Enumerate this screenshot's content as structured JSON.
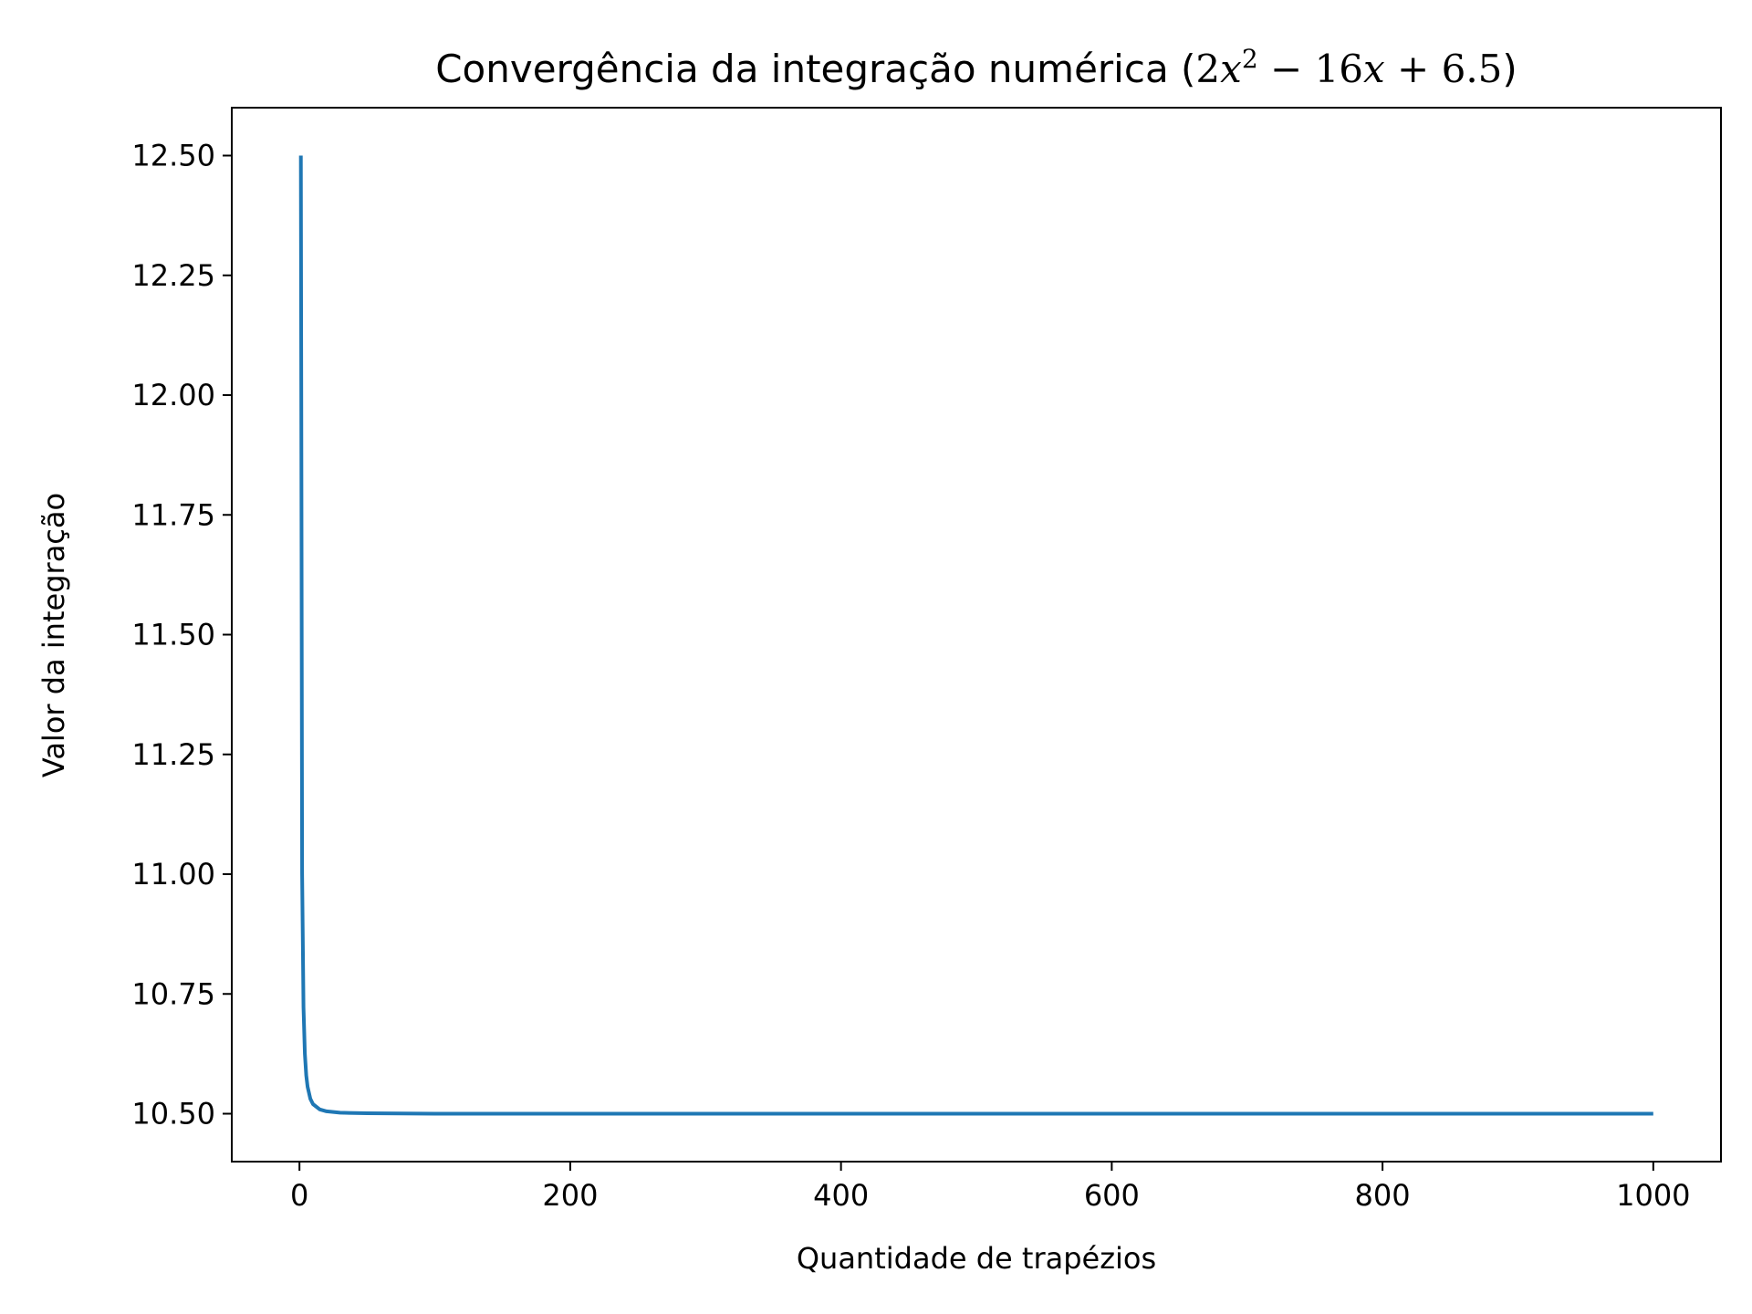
{
  "chart_data": {
    "type": "line",
    "title": {
      "prefix": "Convergência da integração numérica (",
      "t1": "2",
      "x1": "x",
      "sup": "2",
      "t2": " − 16",
      "x2": "x",
      "t3": " + 6.5",
      "suffix": ")"
    },
    "xlabel": "Quantidade de trapézios",
    "ylabel": "Valor da integração",
    "xlim": [
      -50,
      1050
    ],
    "ylim": [
      10.4,
      12.6
    ],
    "xticks": [
      {
        "value": 0,
        "label": "0"
      },
      {
        "value": 200,
        "label": "200"
      },
      {
        "value": 400,
        "label": "400"
      },
      {
        "value": 600,
        "label": "600"
      },
      {
        "value": 800,
        "label": "800"
      },
      {
        "value": 1000,
        "label": "1000"
      }
    ],
    "yticks": [
      {
        "value": 10.5,
        "label": "10.50"
      },
      {
        "value": 10.75,
        "label": "10.75"
      },
      {
        "value": 11.0,
        "label": "11.00"
      },
      {
        "value": 11.25,
        "label": "11.25"
      },
      {
        "value": 11.5,
        "label": "11.50"
      },
      {
        "value": 11.75,
        "label": "11.75"
      },
      {
        "value": 12.0,
        "label": "12.00"
      },
      {
        "value": 12.25,
        "label": "12.25"
      },
      {
        "value": 12.5,
        "label": "12.50"
      }
    ],
    "grid": false,
    "series": [
      {
        "color": "#1f77b4",
        "x": [
          1,
          2,
          3,
          4,
          5,
          6,
          8,
          10,
          15,
          20,
          30,
          50,
          100,
          200,
          400,
          600,
          800,
          1000
        ],
        "y": [
          12.5,
          11.0,
          10.722,
          10.625,
          10.58,
          10.556,
          10.531,
          10.52,
          10.509,
          10.505,
          10.502,
          10.501,
          10.5,
          10.5,
          10.5,
          10.5,
          10.5,
          10.5
        ]
      }
    ]
  }
}
